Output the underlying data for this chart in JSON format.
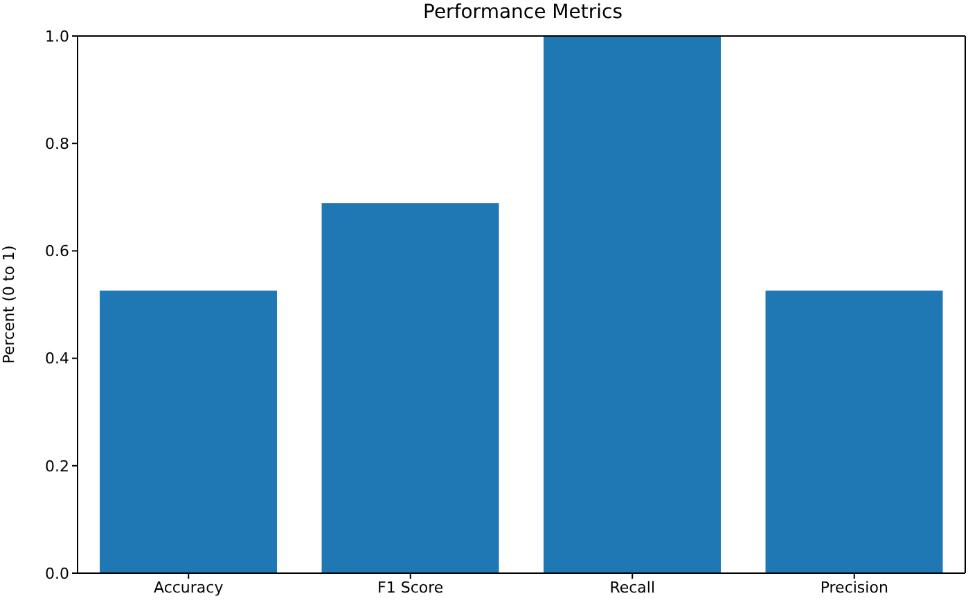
{
  "chart_data": {
    "type": "bar",
    "title": "Performance Metrics",
    "ylabel": "Percent (0 to 1)",
    "categories": [
      "Accuracy",
      "F1 Score",
      "Recall",
      "Precision"
    ],
    "values": [
      0.526,
      0.689,
      1.0,
      0.526
    ],
    "color": "#1f77b4",
    "ylim": [
      0,
      1
    ],
    "yticks": [
      {
        "value": 0,
        "label": "0.0"
      },
      0.2,
      0.4,
      0.6,
      0.8,
      {
        "value": 1,
        "label": "1.0"
      }
    ],
    "grid": false
  }
}
